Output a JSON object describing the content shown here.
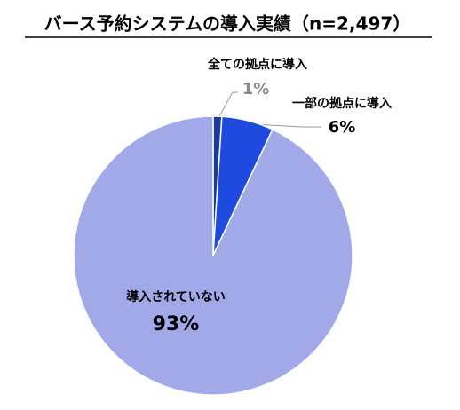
{
  "chart_data": {
    "type": "pie",
    "title": "バース予約システムの導入実績（n=2,497）",
    "categories": [
      "全ての拠点に導入",
      "一部の拠点に導入",
      "導入されていない"
    ],
    "values": [
      1,
      6,
      93
    ],
    "value_labels": [
      "1%",
      "6%",
      "93%"
    ],
    "colors": [
      "#1a3a9c",
      "#1f4ae0",
      "#a2a9e9"
    ]
  }
}
